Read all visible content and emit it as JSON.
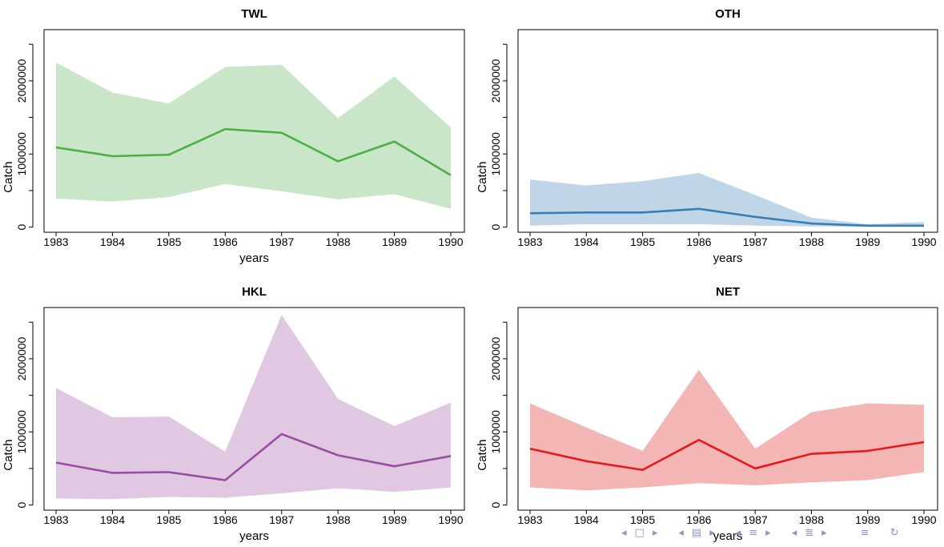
{
  "chart_data": [
    {
      "type": "area",
      "title": "TWL",
      "xlabel": "years",
      "ylabel": "Catch",
      "x": [
        1983,
        1984,
        1985,
        1986,
        1987,
        1988,
        1989,
        1990
      ],
      "x_tick_labels": [
        "1983",
        "1984",
        "1985",
        "1986",
        "1987",
        "1988",
        "1989",
        "1990"
      ],
      "y_ticks": [
        0,
        1000000,
        2000000
      ],
      "y_tick_labels": [
        "0",
        "1000000",
        "2000000"
      ],
      "ylim": [
        -70000,
        2700000
      ],
      "series": [
        {
          "values": [
            1090000,
            970000,
            990000,
            1340000,
            1290000,
            900000,
            1170000,
            710000
          ],
          "lower": [
            390000,
            350000,
            410000,
            590000,
            490000,
            380000,
            450000,
            250000
          ],
          "upper": [
            2250000,
            1840000,
            1690000,
            2190000,
            2220000,
            1490000,
            2060000,
            1360000
          ]
        }
      ],
      "colors": {
        "line": "#4daf4a",
        "band": "#c9e6c8"
      },
      "grid": false
    },
    {
      "type": "area",
      "title": "OTH",
      "xlabel": "years",
      "ylabel": "Catch",
      "x": [
        1983,
        1984,
        1985,
        1986,
        1987,
        1988,
        1989,
        1990
      ],
      "x_tick_labels": [
        "1983",
        "1984",
        "1985",
        "1986",
        "1987",
        "1988",
        "1989",
        "1990"
      ],
      "y_ticks": [
        0,
        1000000,
        2000000
      ],
      "y_tick_labels": [
        "0",
        "1000000",
        "2000000"
      ],
      "ylim": [
        -70000,
        2700000
      ],
      "series": [
        {
          "values": [
            190000,
            200000,
            200000,
            250000,
            140000,
            50000,
            20000,
            20000
          ],
          "lower": [
            20000,
            40000,
            40000,
            40000,
            20000,
            10000,
            5000,
            5000
          ],
          "upper": [
            650000,
            570000,
            630000,
            740000,
            440000,
            130000,
            40000,
            70000
          ]
        }
      ],
      "colors": {
        "line": "#377eb8",
        "band": "#c0d6e8"
      },
      "grid": false
    },
    {
      "type": "area",
      "title": "HKL",
      "xlabel": "years",
      "ylabel": "Catch",
      "x": [
        1983,
        1984,
        1985,
        1986,
        1987,
        1988,
        1989,
        1990
      ],
      "x_tick_labels": [
        "1983",
        "1984",
        "1985",
        "1986",
        "1987",
        "1988",
        "1989",
        "1990"
      ],
      "y_ticks": [
        0,
        1000000,
        2000000
      ],
      "y_tick_labels": [
        "0",
        "1000000",
        "2000000"
      ],
      "ylim": [
        -70000,
        2700000
      ],
      "series": [
        {
          "values": [
            580000,
            440000,
            450000,
            340000,
            970000,
            680000,
            530000,
            670000
          ],
          "lower": [
            90000,
            80000,
            110000,
            100000,
            160000,
            230000,
            180000,
            240000
          ],
          "upper": [
            1600000,
            1200000,
            1210000,
            730000,
            2600000,
            1450000,
            1080000,
            1400000
          ]
        }
      ],
      "colors": {
        "line": "#984ea3",
        "band": "#e0c8e3"
      },
      "grid": false
    },
    {
      "type": "area",
      "title": "NET",
      "xlabel": "years",
      "ylabel": "Catch",
      "x": [
        1983,
        1984,
        1985,
        1986,
        1987,
        1988,
        1989,
        1990
      ],
      "x_tick_labels": [
        "1983",
        "1984",
        "1985",
        "1986",
        "1987",
        "1988",
        "1989",
        "1990"
      ],
      "y_ticks": [
        0,
        1000000,
        2000000
      ],
      "y_tick_labels": [
        "0",
        "1000000",
        "2000000"
      ],
      "ylim": [
        -70000,
        2700000
      ],
      "series": [
        {
          "values": [
            770000,
            600000,
            480000,
            890000,
            500000,
            700000,
            740000,
            860000
          ],
          "lower": [
            240000,
            200000,
            240000,
            300000,
            270000,
            310000,
            340000,
            450000
          ],
          "upper": [
            1390000,
            1060000,
            740000,
            1850000,
            770000,
            1270000,
            1390000,
            1370000
          ]
        }
      ],
      "colors": {
        "line": "#e41a1c",
        "band": "#f4b6b5"
      },
      "grid": false
    }
  ],
  "nav": {
    "color": "#8f93c6",
    "icons": [
      "arrow-left-icon",
      "frame-icon",
      "arrow-right-icon",
      "arrow-left-icon",
      "subsection-icon",
      "arrow-right-icon",
      "arrow-left-icon",
      "section-icon",
      "arrow-right-icon",
      "arrow-left-icon",
      "subsubsection-icon",
      "arrow-right-icon",
      "align-icon",
      "search-icon"
    ]
  }
}
